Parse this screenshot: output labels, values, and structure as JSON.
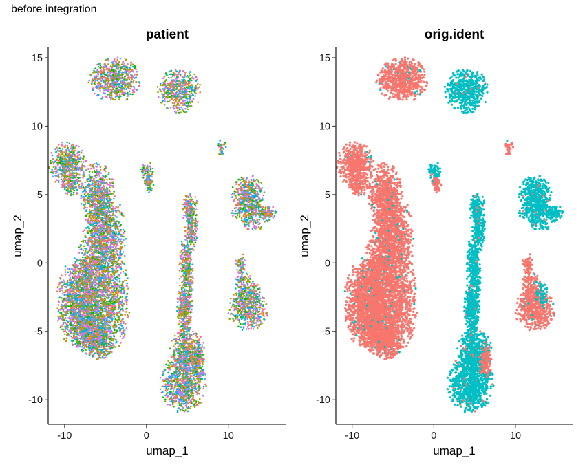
{
  "figure_title": "before integration",
  "colors": {
    "patient_palette": [
      "#F8766D",
      "#7CAE00",
      "#00BFC4",
      "#C77CFF",
      "#E68613",
      "#0CB702",
      "#00A9FF",
      "#FF61CC",
      "#8494FF",
      "#ABA300"
    ],
    "orig_ident_palette": [
      "#F8766D",
      "#00BFC4"
    ]
  },
  "chart_data": [
    {
      "type": "scatter",
      "title": "patient",
      "xlabel": "umap_1",
      "ylabel": "umap_2",
      "xlim": [
        -12,
        17
      ],
      "ylim": [
        -11.8,
        15.8
      ],
      "xticks": [
        -10,
        0,
        10
      ],
      "xtick_labels": [
        "-10",
        "0",
        "10"
      ],
      "yticks": [
        15,
        10,
        5,
        0,
        -5,
        -10
      ],
      "ytick_labels": [
        "15",
        "10",
        "5",
        "0",
        "-5",
        "-10"
      ],
      "grid": false,
      "legend": "none",
      "coloring": "mixed patients (many colors intermixed across all clusters)"
    },
    {
      "type": "scatter",
      "title": "orig.ident",
      "xlabel": "umap_1",
      "ylabel": "umap_2",
      "xlim": [
        -12,
        17
      ],
      "ylim": [
        -11.8,
        15.8
      ],
      "xticks": [
        -10,
        0,
        10
      ],
      "xtick_labels": [
        "-10",
        "0",
        "10"
      ],
      "yticks": [
        15,
        10,
        5,
        0,
        -5,
        -10
      ],
      "ytick_labels": [
        "15",
        "10",
        "5",
        "0",
        "-5",
        "-10"
      ],
      "grid": false,
      "legend": "none",
      "coloring": "two groups: salmon #F8766D and teal #00BFC4"
    }
  ],
  "clusters": [
    {
      "cx": -3.9,
      "cy": 13.4,
      "rx": 1.9,
      "ry": 1.0,
      "n": 700,
      "group": 0
    },
    {
      "cx": 4.0,
      "cy": 12.6,
      "rx": 1.6,
      "ry": 1.0,
      "n": 500,
      "group": 1
    },
    {
      "cx": -9.6,
      "cy": 7.2,
      "rx": 1.4,
      "ry": 1.0,
      "n": 500,
      "group": 0
    },
    {
      "cx": -9.2,
      "cy": 5.6,
      "rx": 0.8,
      "ry": 0.5,
      "n": 120,
      "group": 0
    },
    {
      "cx": -6.0,
      "cy": 5.0,
      "rx": 1.3,
      "ry": 1.4,
      "n": 500,
      "group": 0
    },
    {
      "cx": -5.6,
      "cy": 3.0,
      "rx": 1.1,
      "ry": 1.5,
      "n": 500,
      "group": 0
    },
    {
      "cx": -6.0,
      "cy": 0.5,
      "rx": 1.4,
      "ry": 1.6,
      "n": 600,
      "group": 0
    },
    {
      "cx": -6.9,
      "cy": -1.5,
      "rx": 1.5,
      "ry": 1.3,
      "n": 600,
      "group": 0
    },
    {
      "cx": -8.5,
      "cy": -3.0,
      "rx": 1.5,
      "ry": 2.0,
      "n": 900,
      "group": 0
    },
    {
      "cx": -6.8,
      "cy": -4.4,
      "rx": 1.5,
      "ry": 1.4,
      "n": 900,
      "group": 0
    },
    {
      "cx": -5.8,
      "cy": -5.7,
      "rx": 1.2,
      "ry": 0.8,
      "n": 400,
      "group": 0
    },
    {
      "cx": -4.0,
      "cy": -2.6,
      "rx": 1.2,
      "ry": 2.2,
      "n": 600,
      "group": 0
    },
    {
      "cx": -3.8,
      "cy": 1.8,
      "rx": 0.9,
      "ry": 1.6,
      "n": 250,
      "group": 0
    },
    {
      "cx": 0.1,
      "cy": 6.6,
      "rx": 0.5,
      "ry": 0.5,
      "n": 70,
      "group": 1
    },
    {
      "cx": 0.3,
      "cy": 5.7,
      "rx": 0.4,
      "ry": 0.4,
      "n": 50,
      "group": 0
    },
    {
      "cx": 5.3,
      "cy": 4.0,
      "rx": 0.6,
      "ry": 0.7,
      "n": 150,
      "group": 1
    },
    {
      "cx": 5.5,
      "cy": 2.3,
      "rx": 0.5,
      "ry": 1.0,
      "n": 160,
      "group": 1
    },
    {
      "cx": 4.9,
      "cy": -0.5,
      "rx": 0.55,
      "ry": 1.6,
      "n": 300,
      "group": 1
    },
    {
      "cx": 4.7,
      "cy": -3.5,
      "rx": 0.6,
      "ry": 1.4,
      "n": 350,
      "group": 1
    },
    {
      "cx": 5.0,
      "cy": -6.5,
      "rx": 1.3,
      "ry": 1.0,
      "n": 500,
      "group": 1
    },
    {
      "cx": 4.5,
      "cy": -8.8,
      "rx": 1.7,
      "ry": 1.3,
      "n": 800,
      "group": 1
    },
    {
      "cx": 6.3,
      "cy": -7.0,
      "rx": 0.5,
      "ry": 0.9,
      "n": 120,
      "group": 0
    },
    {
      "cx": 9.2,
      "cy": 8.4,
      "rx": 0.35,
      "ry": 0.4,
      "n": 30,
      "group": 0
    },
    {
      "cx": 12.4,
      "cy": 5.0,
      "rx": 1.2,
      "ry": 0.9,
      "n": 400,
      "group": 1
    },
    {
      "cx": 12.7,
      "cy": 3.5,
      "rx": 1.5,
      "ry": 0.7,
      "n": 250,
      "group": 1
    },
    {
      "cx": 14.8,
      "cy": 3.7,
      "rx": 0.7,
      "ry": 0.3,
      "n": 80,
      "group": 1
    },
    {
      "cx": 11.5,
      "cy": -0.1,
      "rx": 0.4,
      "ry": 0.5,
      "n": 60,
      "group": 0
    },
    {
      "cx": 12.4,
      "cy": -3.4,
      "rx": 1.5,
      "ry": 1.0,
      "n": 450,
      "group": 0
    },
    {
      "cx": 11.9,
      "cy": -1.8,
      "rx": 0.8,
      "ry": 0.8,
      "n": 150,
      "group": 0
    },
    {
      "cx": 13.2,
      "cy": -2.4,
      "rx": 0.5,
      "ry": 0.6,
      "n": 60,
      "group": 1
    }
  ]
}
